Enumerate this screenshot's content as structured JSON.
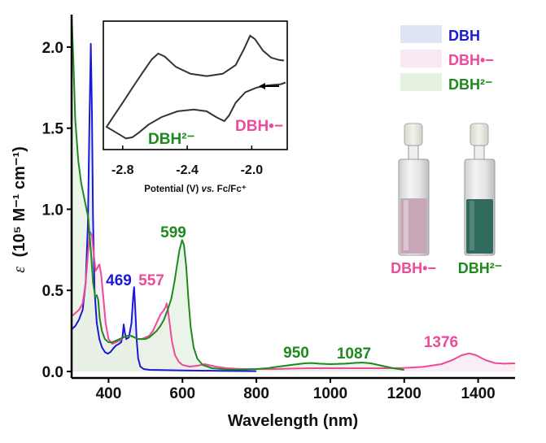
{
  "colors": {
    "DBH": "#1a1ad6",
    "DBH_radical_anion": "#ee4a9a",
    "DBH_dianion": "#1e8a1e",
    "DBH_fill": "#dfe4f4",
    "DBH_radical_anion_fill": "#f7e8f3",
    "DBH_dianion_fill": "#e5f2e1",
    "axis": "#000000"
  },
  "chart_data": [
    {
      "type": "line",
      "xlabel": "Wavelength (nm)",
      "ylabel_symbol": "ε",
      "ylabel_units": "(10⁵ M⁻¹ cm⁻¹)",
      "xlim": [
        300,
        1500
      ],
      "ylim": [
        -0.04,
        2.2
      ],
      "xticks": [
        400,
        600,
        800,
        1000,
        1200,
        1400
      ],
      "yticks": [
        0.0,
        0.5,
        1.0,
        1.5,
        2.0
      ],
      "ytick_labels": [
        "0.0",
        "0.5",
        "1.0",
        "1.5",
        "2.0"
      ],
      "legend_position": "top-right",
      "series": [
        {
          "name": "DBH",
          "color_key": "DBH",
          "points": [
            [
              300,
              0.26
            ],
            [
              310,
              0.28
            ],
            [
              320,
              0.32
            ],
            [
              330,
              0.38
            ],
            [
              338,
              0.55
            ],
            [
              344,
              0.9
            ],
            [
              348,
              1.5
            ],
            [
              352,
              2.02
            ],
            [
              355,
              1.6
            ],
            [
              358,
              0.95
            ],
            [
              362,
              0.5
            ],
            [
              368,
              0.3
            ],
            [
              375,
              0.2
            ],
            [
              382,
              0.15
            ],
            [
              390,
              0.12
            ],
            [
              398,
              0.11
            ],
            [
              405,
              0.12
            ],
            [
              412,
              0.14
            ],
            [
              420,
              0.16
            ],
            [
              428,
              0.17
            ],
            [
              434,
              0.18
            ],
            [
              438,
              0.22
            ],
            [
              441,
              0.29
            ],
            [
              444,
              0.24
            ],
            [
              448,
              0.2
            ],
            [
              455,
              0.21
            ],
            [
              462,
              0.3
            ],
            [
              467,
              0.47
            ],
            [
              469,
              0.52
            ],
            [
              472,
              0.4
            ],
            [
              476,
              0.2
            ],
            [
              480,
              0.08
            ],
            [
              486,
              0.03
            ],
            [
              495,
              0.015
            ],
            [
              510,
              0.01
            ],
            [
              600,
              0.006
            ],
            [
              700,
              0.004
            ],
            [
              800,
              0.002
            ]
          ]
        },
        {
          "name": "DBH•−",
          "color_key": "DBH_radical_anion",
          "points": [
            [
              300,
              0.34
            ],
            [
              310,
              0.36
            ],
            [
              320,
              0.38
            ],
            [
              330,
              0.42
            ],
            [
              338,
              0.55
            ],
            [
              344,
              0.72
            ],
            [
              350,
              0.86
            ],
            [
              355,
              0.84
            ],
            [
              360,
              0.72
            ],
            [
              365,
              0.62
            ],
            [
              370,
              0.64
            ],
            [
              375,
              0.66
            ],
            [
              380,
              0.6
            ],
            [
              386,
              0.45
            ],
            [
              392,
              0.3
            ],
            [
              400,
              0.2
            ],
            [
              410,
              0.17
            ],
            [
              420,
              0.18
            ],
            [
              430,
              0.19
            ],
            [
              440,
              0.21
            ],
            [
              450,
              0.22
            ],
            [
              460,
              0.22
            ],
            [
              470,
              0.21
            ],
            [
              480,
              0.2
            ],
            [
              490,
              0.2
            ],
            [
              500,
              0.21
            ],
            [
              510,
              0.22
            ],
            [
              520,
              0.25
            ],
            [
              530,
              0.3
            ],
            [
              540,
              0.35
            ],
            [
              550,
              0.38
            ],
            [
              555,
              0.4
            ],
            [
              557,
              0.42
            ],
            [
              560,
              0.39
            ],
            [
              565,
              0.3
            ],
            [
              572,
              0.18
            ],
            [
              580,
              0.1
            ],
            [
              590,
              0.06
            ],
            [
              600,
              0.04
            ],
            [
              620,
              0.03
            ],
            [
              640,
              0.035
            ],
            [
              660,
              0.045
            ],
            [
              670,
              0.04
            ],
            [
              690,
              0.03
            ],
            [
              720,
              0.02
            ],
            [
              760,
              0.015
            ],
            [
              800,
              0.015
            ],
            [
              850,
              0.015
            ],
            [
              900,
              0.018
            ],
            [
              950,
              0.02
            ],
            [
              1000,
              0.02
            ],
            [
              1050,
              0.02
            ],
            [
              1100,
              0.02
            ],
            [
              1150,
              0.02
            ],
            [
              1200,
              0.022
            ],
            [
              1250,
              0.028
            ],
            [
              1300,
              0.045
            ],
            [
              1330,
              0.07
            ],
            [
              1355,
              0.1
            ],
            [
              1376,
              0.112
            ],
            [
              1395,
              0.1
            ],
            [
              1420,
              0.07
            ],
            [
              1445,
              0.052
            ],
            [
              1470,
              0.048
            ],
            [
              1500,
              0.05
            ]
          ]
        },
        {
          "name": "DBH²⁻",
          "color_key": "DBH_dianion",
          "points": [
            [
              300,
              2.25
            ],
            [
              305,
              1.9
            ],
            [
              310,
              1.55
            ],
            [
              318,
              1.3
            ],
            [
              326,
              1.16
            ],
            [
              335,
              1.06
            ],
            [
              345,
              0.95
            ],
            [
              352,
              0.75
            ],
            [
              358,
              0.55
            ],
            [
              364,
              0.46
            ],
            [
              368,
              0.47
            ],
            [
              372,
              0.44
            ],
            [
              376,
              0.33
            ],
            [
              382,
              0.25
            ],
            [
              390,
              0.2
            ],
            [
              400,
              0.18
            ],
            [
              410,
              0.18
            ],
            [
              420,
              0.19
            ],
            [
              430,
              0.2
            ],
            [
              440,
              0.21
            ],
            [
              450,
              0.22
            ],
            [
              460,
              0.22
            ],
            [
              470,
              0.21
            ],
            [
              480,
              0.2
            ],
            [
              490,
              0.2
            ],
            [
              500,
              0.2
            ],
            [
              510,
              0.21
            ],
            [
              520,
              0.23
            ],
            [
              530,
              0.25
            ],
            [
              540,
              0.28
            ],
            [
              550,
              0.32
            ],
            [
              560,
              0.38
            ],
            [
              570,
              0.45
            ],
            [
              578,
              0.55
            ],
            [
              585,
              0.65
            ],
            [
              592,
              0.75
            ],
            [
              599,
              0.81
            ],
            [
              604,
              0.78
            ],
            [
              610,
              0.65
            ],
            [
              616,
              0.45
            ],
            [
              622,
              0.28
            ],
            [
              630,
              0.15
            ],
            [
              640,
              0.08
            ],
            [
              655,
              0.04
            ],
            [
              680,
              0.02
            ],
            [
              720,
              0.012
            ],
            [
              760,
              0.012
            ],
            [
              800,
              0.015
            ],
            [
              830,
              0.02
            ],
            [
              860,
              0.03
            ],
            [
              900,
              0.042
            ],
            [
              930,
              0.05
            ],
            [
              950,
              0.052
            ],
            [
              970,
              0.048
            ],
            [
              1000,
              0.045
            ],
            [
              1040,
              0.048
            ],
            [
              1070,
              0.053
            ],
            [
              1087,
              0.055
            ],
            [
              1110,
              0.05
            ],
            [
              1140,
              0.035
            ],
            [
              1170,
              0.02
            ],
            [
              1200,
              0.01
            ]
          ]
        }
      ],
      "annotations": [
        {
          "text": "469",
          "x": 469,
          "color_key": "DBH"
        },
        {
          "text": "557",
          "x": 557,
          "color_key": "DBH_radical_anion"
        },
        {
          "text": "599",
          "x": 599,
          "color_key": "DBH_dianion"
        },
        {
          "text": "950",
          "x": 950,
          "color_key": "DBH_dianion"
        },
        {
          "text": "1087",
          "x": 1087,
          "color_key": "DBH_dianion"
        },
        {
          "text": "1376",
          "x": 1376,
          "color_key": "DBH_radical_anion"
        }
      ]
    },
    {
      "type": "line",
      "xlabel_parts": [
        "Potential (V) ",
        "vs.",
        " Fc/Fc⁺"
      ],
      "xlim": [
        -2.92,
        -1.78
      ],
      "xticks": [
        -2.8,
        -2.4,
        -2.0
      ],
      "xtick_labels": [
        "-2.8",
        "-2.4",
        "-2.0"
      ],
      "ylim": [
        -1.0,
        1.0
      ],
      "series": [
        {
          "name": "cyclic voltammogram",
          "points": [
            [
              -1.79,
              0.05
            ],
            [
              -1.82,
              0.02
            ],
            [
              -1.9,
              0.0
            ],
            [
              -1.97,
              -0.04
            ],
            [
              -2.04,
              -0.12
            ],
            [
              -2.1,
              -0.3
            ],
            [
              -2.14,
              -0.52
            ],
            [
              -2.17,
              -0.62
            ],
            [
              -2.22,
              -0.55
            ],
            [
              -2.28,
              -0.45
            ],
            [
              -2.36,
              -0.42
            ],
            [
              -2.46,
              -0.45
            ],
            [
              -2.56,
              -0.55
            ],
            [
              -2.64,
              -0.68
            ],
            [
              -2.7,
              -0.82
            ],
            [
              -2.74,
              -0.9
            ],
            [
              -2.78,
              -0.92
            ],
            [
              -2.84,
              -0.82
            ],
            [
              -2.9,
              -0.72
            ],
            [
              -2.9,
              -0.72
            ],
            [
              -2.86,
              -0.55
            ],
            [
              -2.8,
              -0.3
            ],
            [
              -2.73,
              0.0
            ],
            [
              -2.67,
              0.25
            ],
            [
              -2.62,
              0.45
            ],
            [
              -2.58,
              0.55
            ],
            [
              -2.54,
              0.5
            ],
            [
              -2.47,
              0.32
            ],
            [
              -2.38,
              0.2
            ],
            [
              -2.28,
              0.16
            ],
            [
              -2.18,
              0.2
            ],
            [
              -2.1,
              0.35
            ],
            [
              -2.05,
              0.62
            ],
            [
              -2.01,
              0.86
            ],
            [
              -1.98,
              0.8
            ],
            [
              -1.93,
              0.6
            ],
            [
              -1.88,
              0.48
            ],
            [
              -1.83,
              0.44
            ],
            [
              -1.8,
              0.43
            ]
          ]
        }
      ],
      "annotations": [
        {
          "text": "DBH²⁻",
          "color_key": "DBH_dianion"
        },
        {
          "text": "DBH•−",
          "color_key": "DBH_radical_anion"
        }
      ]
    }
  ],
  "vial_labels": [
    {
      "text": "DBH•−",
      "color_key": "DBH_radical_anion",
      "solution_color": "#c7a7b7"
    },
    {
      "text": "DBH²⁻",
      "color_key": "DBH_dianion",
      "solution_color": "#2f6a5c"
    }
  ]
}
